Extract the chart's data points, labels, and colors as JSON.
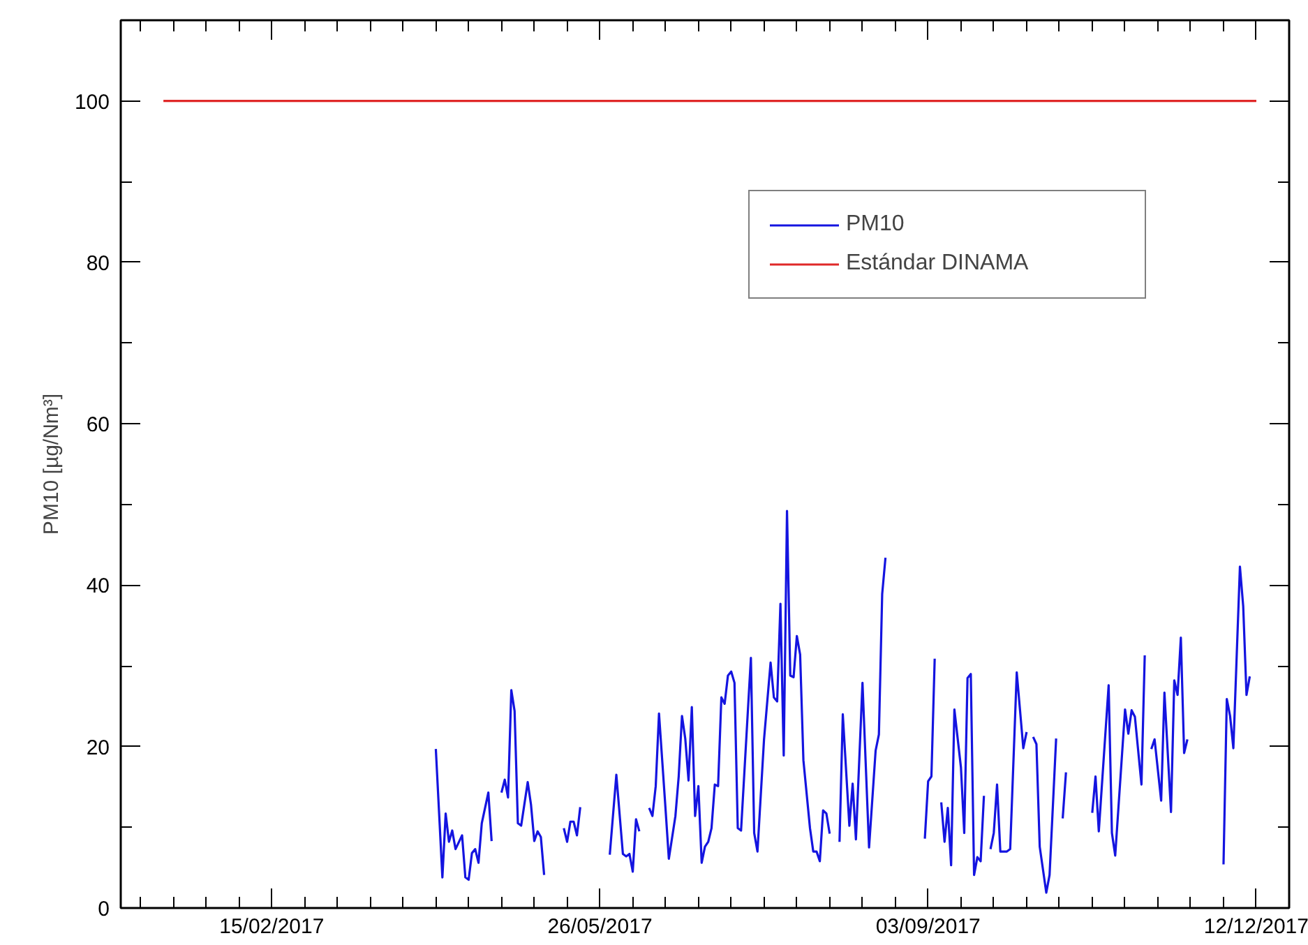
{
  "chart_data": {
    "type": "line",
    "ylabel": "PM10 [µg/Nm³]",
    "xlim": [
      "2016-12-31",
      "2017-12-22"
    ],
    "xticks": [
      {
        "value": "2017-01-06",
        "label": null
      },
      {
        "value": "2017-01-16",
        "label": null
      },
      {
        "value": "2017-01-26",
        "label": null
      },
      {
        "value": "2017-02-05",
        "label": null
      },
      {
        "value": "2017-02-15",
        "label": "15/02/2017"
      },
      {
        "value": "2017-02-25",
        "label": null
      },
      {
        "value": "2017-03-07",
        "label": null
      },
      {
        "value": "2017-03-17",
        "label": null
      },
      {
        "value": "2017-03-27",
        "label": null
      },
      {
        "value": "2017-04-06",
        "label": null
      },
      {
        "value": "2017-04-16",
        "label": null
      },
      {
        "value": "2017-04-26",
        "label": null
      },
      {
        "value": "2017-05-06",
        "label": null
      },
      {
        "value": "2017-05-16",
        "label": null
      },
      {
        "value": "2017-05-26",
        "label": "26/05/2017"
      },
      {
        "value": "2017-06-05",
        "label": null
      },
      {
        "value": "2017-06-15",
        "label": null
      },
      {
        "value": "2017-06-25",
        "label": null
      },
      {
        "value": "2017-07-05",
        "label": null
      },
      {
        "value": "2017-07-15",
        "label": null
      },
      {
        "value": "2017-07-25",
        "label": null
      },
      {
        "value": "2017-08-04",
        "label": null
      },
      {
        "value": "2017-08-14",
        "label": null
      },
      {
        "value": "2017-08-24",
        "label": null
      },
      {
        "value": "2017-09-03",
        "label": "03/09/2017"
      },
      {
        "value": "2017-09-13",
        "label": null
      },
      {
        "value": "2017-09-23",
        "label": null
      },
      {
        "value": "2017-10-03",
        "label": null
      },
      {
        "value": "2017-10-13",
        "label": null
      },
      {
        "value": "2017-10-23",
        "label": null
      },
      {
        "value": "2017-11-02",
        "label": null
      },
      {
        "value": "2017-11-12",
        "label": null
      },
      {
        "value": "2017-11-22",
        "label": null
      },
      {
        "value": "2017-12-02",
        "label": null
      },
      {
        "value": "2017-12-12",
        "label": "12/12/2017"
      }
    ],
    "ylim": [
      0,
      110
    ],
    "yticks": [
      0,
      {
        "value": 10,
        "label": null
      },
      20,
      {
        "value": 30,
        "label": null
      },
      40,
      {
        "value": 50,
        "label": null
      },
      60,
      {
        "value": 70,
        "label": null
      },
      80,
      {
        "value": 90,
        "label": null
      },
      100,
      {
        "value": 110,
        "label": null
      }
    ],
    "grid": false,
    "legend": "top right",
    "marker": "none",
    "line_style": "solid",
    "series": [
      {
        "name": "PM10",
        "color": "#1414e0",
        "x": [
          "2017-04-06",
          "2017-04-08",
          "2017-04-09",
          "2017-04-10",
          "2017-04-11",
          "2017-04-12",
          "2017-04-14",
          "2017-04-15",
          "2017-04-16",
          "2017-04-17",
          "2017-04-18",
          "2017-04-19",
          "2017-04-20",
          "2017-04-22",
          "2017-04-23",
          "2017-04-24",
          "2017-04-26",
          "2017-04-27",
          "2017-04-28",
          "2017-04-29",
          "2017-04-30",
          "2017-05-01",
          "2017-05-02",
          "2017-05-04",
          "2017-05-05",
          "2017-05-06",
          "2017-05-07",
          "2017-05-08",
          "2017-05-09",
          "2017-05-10",
          "2017-05-15",
          "2017-05-16",
          "2017-05-17",
          "2017-05-18",
          "2017-05-19",
          "2017-05-20",
          "2017-05-21",
          "2017-05-29",
          "2017-05-31",
          "2017-06-02",
          "2017-06-03",
          "2017-06-04",
          "2017-06-05",
          "2017-06-06",
          "2017-06-07",
          "2017-06-08",
          "2017-06-10",
          "2017-06-11",
          "2017-06-12",
          "2017-06-13",
          "2017-06-15",
          "2017-06-16",
          "2017-06-18",
          "2017-06-19",
          "2017-06-20",
          "2017-06-21",
          "2017-06-22",
          "2017-06-23",
          "2017-06-24",
          "2017-06-25",
          "2017-06-26",
          "2017-06-27",
          "2017-06-28",
          "2017-06-29",
          "2017-06-30",
          "2017-07-01",
          "2017-07-02",
          "2017-07-03",
          "2017-07-04",
          "2017-07-05",
          "2017-07-06",
          "2017-07-07",
          "2017-07-08",
          "2017-07-11",
          "2017-07-12",
          "2017-07-13",
          "2017-07-15",
          "2017-07-17",
          "2017-07-18",
          "2017-07-19",
          "2017-07-20",
          "2017-07-21",
          "2017-07-22",
          "2017-07-23",
          "2017-07-24",
          "2017-07-25",
          "2017-07-26",
          "2017-07-27",
          "2017-07-29",
          "2017-07-30",
          "2017-07-31",
          "2017-08-01",
          "2017-08-02",
          "2017-08-03",
          "2017-08-04",
          "2017-08-05",
          "2017-08-07",
          "2017-08-08",
          "2017-08-10",
          "2017-08-11",
          "2017-08-12",
          "2017-08-14",
          "2017-08-16",
          "2017-08-18",
          "2017-08-19",
          "2017-08-20",
          "2017-08-21",
          "2017-08-22",
          "2017-09-02",
          "2017-09-03",
          "2017-09-04",
          "2017-09-05",
          "2017-09-06",
          "2017-09-07",
          "2017-09-08",
          "2017-09-09",
          "2017-09-10",
          "2017-09-11",
          "2017-09-13",
          "2017-09-14",
          "2017-09-15",
          "2017-09-16",
          "2017-09-17",
          "2017-09-18",
          "2017-09-19",
          "2017-09-20",
          "2017-09-21",
          "2017-09-22",
          "2017-09-23",
          "2017-09-24",
          "2017-09-25",
          "2017-09-27",
          "2017-09-28",
          "2017-09-30",
          "2017-10-02",
          "2017-10-03",
          "2017-10-04",
          "2017-10-05",
          "2017-10-06",
          "2017-10-07",
          "2017-10-09",
          "2017-10-10",
          "2017-10-12",
          "2017-10-13",
          "2017-10-14",
          "2017-10-15",
          "2017-10-16",
          "2017-10-23",
          "2017-10-24",
          "2017-10-25",
          "2017-10-28",
          "2017-10-29",
          "2017-10-30",
          "2017-11-02",
          "2017-11-03",
          "2017-11-04",
          "2017-11-05",
          "2017-11-07",
          "2017-11-08",
          "2017-11-09",
          "2017-11-10",
          "2017-11-11",
          "2017-11-13",
          "2017-11-14",
          "2017-11-16",
          "2017-11-17",
          "2017-11-18",
          "2017-11-19",
          "2017-11-20",
          "2017-11-21",
          "2017-11-22",
          "2017-12-02",
          "2017-12-03",
          "2017-12-04",
          "2017-12-05",
          "2017-12-07",
          "2017-12-08",
          "2017-12-09",
          "2017-12-10"
        ],
        "values": [
          19.7,
          3.8,
          11.7,
          8.2,
          9.6,
          7.3,
          9,
          3.8,
          3.5,
          6.8,
          7.3,
          5.6,
          10.5,
          14.3,
          8.3,
          null,
          14.3,
          15.9,
          13.7,
          27,
          24.4,
          10.5,
          10.2,
          15.6,
          12.8,
          8.3,
          9.5,
          8.8,
          4.1,
          null,
          9.9,
          8.2,
          10.7,
          10.7,
          9,
          12.5,
          null,
          6.6,
          16.5,
          6.7,
          6.4,
          6.7,
          4.5,
          11,
          9.5,
          null,
          12.4,
          11.4,
          15.1,
          24.1,
          12.2,
          6.1,
          11.4,
          16.3,
          23.8,
          21,
          15.8,
          24.9,
          11.4,
          15.1,
          5.6,
          7.6,
          8.2,
          9.9,
          15.3,
          15.1,
          26.1,
          25.3,
          28.8,
          29.3,
          27.9,
          9.9,
          9.6,
          31,
          9.3,
          7,
          20.9,
          30.4,
          26.1,
          25.6,
          37.7,
          18.9,
          49.2,
          28.8,
          28.6,
          33.7,
          31.4,
          18.3,
          9.9,
          7,
          7,
          5.8,
          12.1,
          11.7,
          9.2,
          null,
          8.2,
          24,
          10.2,
          15.4,
          8.5,
          27.9,
          7.5,
          19.5,
          21.5,
          38.9,
          43.4,
          null,
          8.6,
          15.7,
          16.3,
          30.9,
          null,
          13.1,
          8.2,
          12.4,
          5.3,
          24.6,
          17.4,
          9.3,
          28.5,
          29,
          4.1,
          6.3,
          5.8,
          13.9,
          null,
          7.3,
          9.3,
          15.3,
          7,
          7,
          7.3,
          29.2,
          19.8,
          21.8,
          null,
          21.2,
          20.3,
          7.6,
          1.9,
          4.1,
          21,
          null,
          11.1,
          16.8,
          null,
          11.8,
          16.3,
          9.5,
          27.6,
          9.3,
          6.5,
          24.6,
          21.6,
          24.5,
          23.7,
          15.3,
          31.3,
          null,
          19.7,
          20.9,
          13.3,
          26.7,
          11.9,
          28.2,
          26.4,
          33.5,
          19.2,
          20.9,
          null,
          5.4,
          25.9,
          23.8,
          19.8,
          42.3,
          37.4,
          26.4,
          28.7
        ]
      },
      {
        "name": "Estándar DINAMA",
        "color": "#e02828",
        "x": [
          "2017-01-13",
          "2017-12-12"
        ],
        "values": [
          100,
          100
        ]
      }
    ]
  }
}
